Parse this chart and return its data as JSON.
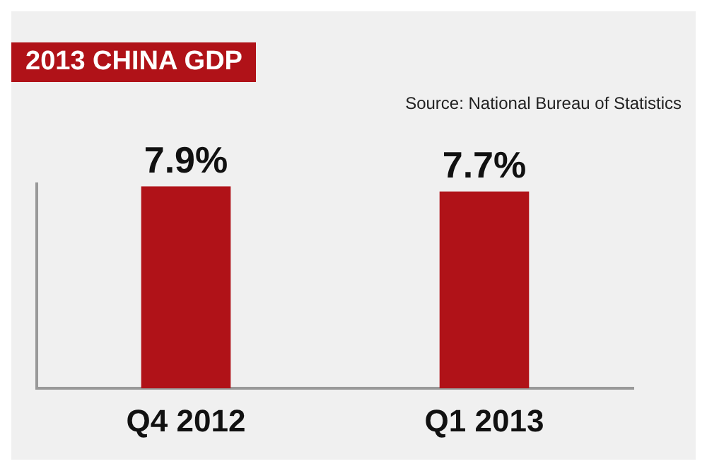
{
  "chart_data": {
    "type": "bar",
    "title": "2013 CHINA GDP",
    "annotations": [
      "Source: National Bureau of Statistics"
    ],
    "categories": [
      "Q4 2012",
      "Q1 2013"
    ],
    "values": [
      7.9,
      7.7
    ],
    "value_labels": [
      "7.9%",
      "7.7%"
    ],
    "color": "#b01218"
  }
}
